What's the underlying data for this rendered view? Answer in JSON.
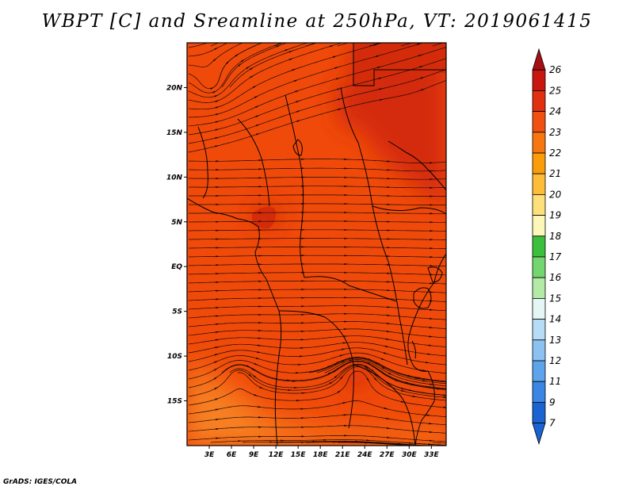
{
  "title": "WBPT [C] and Sreamline at 250hPa, VT: 2019061415",
  "footer": "GrADS: IGES/COLA",
  "map": {
    "lat_labels": [
      {
        "lat": 20,
        "label": "20N"
      },
      {
        "lat": 15,
        "label": "15N"
      },
      {
        "lat": 10,
        "label": "10N"
      },
      {
        "lat": 5,
        "label": "5N"
      },
      {
        "lat": 0,
        "label": "EQ"
      },
      {
        "lat": -5,
        "label": "5S"
      },
      {
        "lat": -10,
        "label": "10S"
      },
      {
        "lat": -15,
        "label": "15S"
      }
    ],
    "lon_labels": [
      {
        "lon": 3,
        "label": "3E"
      },
      {
        "lon": 6,
        "label": "6E"
      },
      {
        "lon": 9,
        "label": "9E"
      },
      {
        "lon": 12,
        "label": "12E"
      },
      {
        "lon": 15,
        "label": "15E"
      },
      {
        "lon": 18,
        "label": "18E"
      },
      {
        "lon": 21,
        "label": "21E"
      },
      {
        "lon": 24,
        "label": "24E"
      },
      {
        "lon": 27,
        "label": "27E"
      },
      {
        "lon": 30,
        "label": "30E"
      },
      {
        "lon": 33,
        "label": "33E"
      }
    ],
    "lon_range": [
      0,
      35
    ],
    "lat_range": [
      -20,
      25
    ],
    "field_colors": {
      "base": "#f04a0a",
      "warm": "#d42c0a",
      "cool": "#f46a12",
      "coolest": "#f78020"
    }
  },
  "colorbar": {
    "levels": [
      {
        "label": "26",
        "color": "#a50f15"
      },
      {
        "label": "25",
        "color": "#c8170f"
      },
      {
        "label": "24",
        "color": "#e03010"
      },
      {
        "label": "23",
        "color": "#f05012"
      },
      {
        "label": "22",
        "color": "#f7760f"
      },
      {
        "label": "21",
        "color": "#fb9c0a"
      },
      {
        "label": "20",
        "color": "#fdbd3a"
      },
      {
        "label": "19",
        "color": "#fde07a"
      },
      {
        "label": "18",
        "color": "#fdf7b8"
      },
      {
        "label": "17",
        "color": "#3cbf3c"
      },
      {
        "label": "16",
        "color": "#74d66e"
      },
      {
        "label": "15",
        "color": "#b2eaa6"
      },
      {
        "label": "14",
        "color": "#e4f7f4"
      },
      {
        "label": "13",
        "color": "#b6dcf6"
      },
      {
        "label": "12",
        "color": "#8cc2f2"
      },
      {
        "label": "11",
        "color": "#5ea4ea"
      },
      {
        "label": "9",
        "color": "#3a86e2"
      },
      {
        "label": "7",
        "color": "#1a63d2"
      }
    ],
    "bottom_color": "#1a63d2"
  }
}
